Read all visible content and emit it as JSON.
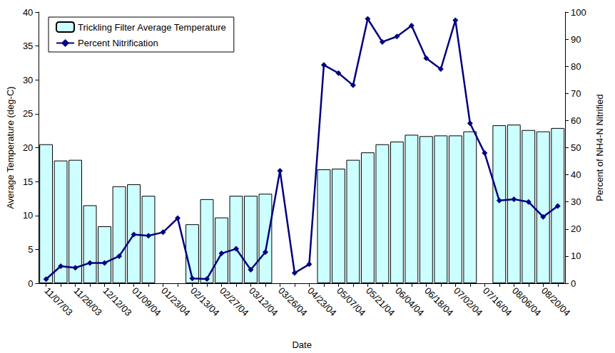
{
  "chart_data": {
    "type": "bar",
    "x_label": "Date",
    "y_label": "Average Temperature (deg-C)",
    "y2_label": "Percent of NH4-N Nitrified",
    "categories": [
      "11/07/03",
      null,
      "11/28/03",
      null,
      "12/12/03",
      null,
      "01/09/04",
      null,
      "01/23/04",
      null,
      "02/13/04",
      null,
      "02/27/04",
      null,
      "03/12/04",
      null,
      "03/26/04",
      null,
      "04/23/04",
      null,
      "05/07/04",
      null,
      "05/21/04",
      null,
      "06/04/04",
      null,
      "06/18/04",
      null,
      "07/02/04",
      null,
      "07/16/04",
      null,
      "08/06/04",
      null,
      "08/20/04",
      null
    ],
    "series": [
      {
        "name": "Trickling Filter Average Temperature",
        "type": "bar",
        "color": "#ccffff",
        "values": [
          20.5,
          18.1,
          18.2,
          11.5,
          8.4,
          14.3,
          14.6,
          12.9,
          null,
          null,
          8.7,
          12.4,
          9.7,
          12.9,
          12.9,
          13.2,
          null,
          null,
          null,
          16.8,
          16.9,
          18.2,
          19.3,
          20.5,
          20.9,
          21.9,
          21.7,
          21.8,
          21.8,
          22.4,
          null,
          23.3,
          23.4,
          22.6,
          22.4,
          22.9
        ]
      },
      {
        "name": "Percent Nitrification",
        "type": "line",
        "axis": "y2",
        "color": "#000080",
        "marker": "diamond",
        "values": [
          1.5,
          6.3,
          5.7,
          7.5,
          7.5,
          10,
          18,
          17.5,
          18.8,
          24,
          1.8,
          1.6,
          11,
          12.7,
          5,
          11.5,
          41.5,
          3.8,
          7.0,
          80.5,
          77.5,
          73,
          97.5,
          89,
          91,
          95,
          83,
          79,
          97,
          59,
          48,
          30.5,
          31,
          30,
          24.5,
          28.5
        ]
      }
    ],
    "ylim": [
      0,
      40
    ],
    "yticks": [
      0,
      5,
      10,
      15,
      20,
      25,
      30,
      35,
      40
    ],
    "y2lim": [
      0,
      100
    ],
    "y2ticks": [
      0,
      10,
      20,
      30,
      40,
      50,
      60,
      70,
      80,
      90,
      100
    ],
    "grid": false,
    "legend": "upper left"
  }
}
